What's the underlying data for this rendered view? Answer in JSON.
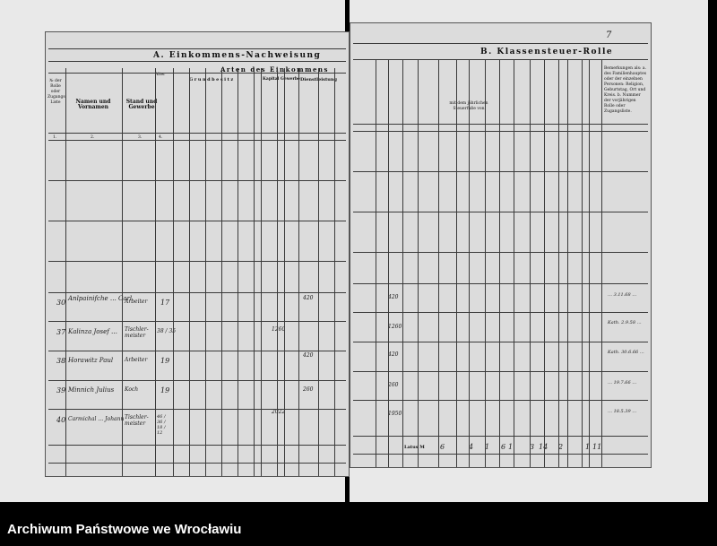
{
  "left_page": {
    "section_title": "A. Einkommens-Nachweisung",
    "group_title": "Arten des Einkommens",
    "groups": [
      "Grundbesitz",
      "Kapital",
      "Gewerbe",
      "Dienstleistung"
    ],
    "columns": [
      "№ der Rolle oder Zugangs-Liste",
      "Namen und Vornamen",
      "Stand und Gewerbe",
      "Alter"
    ],
    "column_numbers": [
      "1.",
      "2.",
      "3.",
      "4."
    ]
  },
  "right_page": {
    "section_title": "B. Klassensteuer-Rolle",
    "page_mark": "7",
    "remarks_header": "Bemerkungen als: a. des Familienhauptes oder der einzelnen Personen: Religion, Geburtstag, Ort und Kreis. b. Nummer der vorjährigen Rolle oder Zugangsliste.",
    "steuer_header": "mit dem jährlichen Steuerfuße von",
    "latus_label": "Latus M"
  },
  "entries": [
    {
      "no": "30",
      "name": "Anlpainifche … Carl",
      "stand": "Arbeiter",
      "age": "17",
      "income": "420",
      "sum": "420",
      "remark": "… 3.11.68 …"
    },
    {
      "no": "37",
      "name": "Kalinza Josef …",
      "stand": "Tischler- meister",
      "age": "38 / 35",
      "income": "1260",
      "sum": "1260",
      "remark": "Kath. 2.9.58 …"
    },
    {
      "no": "38",
      "name": "Horawitz Paul",
      "stand": "Arbeiter",
      "age": "19",
      "income": "420",
      "sum": "420",
      "remark": "Kath. 30.6.66 …"
    },
    {
      "no": "39",
      "name": "Minnich Julius",
      "stand": "Koch",
      "age": "19",
      "income": "260",
      "sum": "260",
      "remark": "… 19.7.66 …"
    },
    {
      "no": "40",
      "name": "Carmichal … Johann",
      "stand": "Tischler- meister",
      "age": "46 / 36 / 18 / 12",
      "income": "2022",
      "sum": "1950",
      "remark": "… 18.5.39 …"
    }
  ],
  "totals": [
    "6",
    "4",
    "1",
    "6",
    "1",
    "3",
    "14",
    "2",
    "1",
    "11"
  ],
  "footer": {
    "archive_name": "Archiwum Państwowe we Wrocławiu"
  }
}
